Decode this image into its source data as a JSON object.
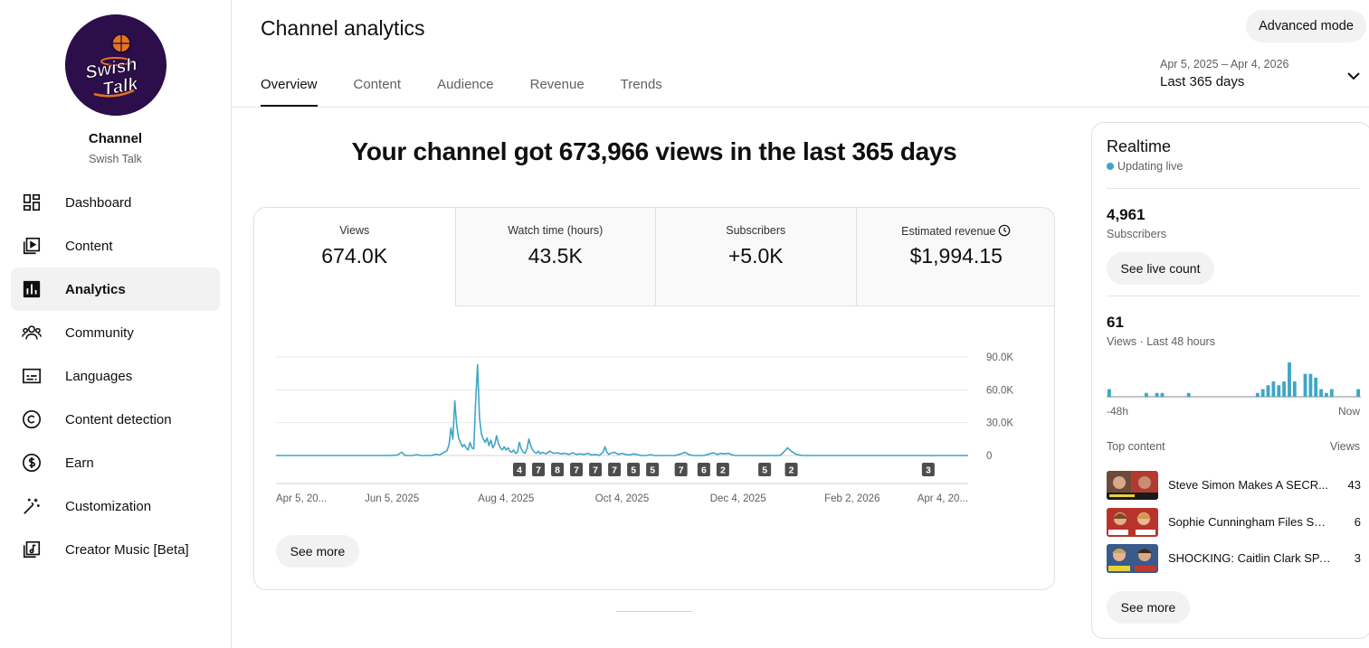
{
  "sidebar": {
    "logo": {
      "line1": "Swish",
      "line2": "Talk"
    },
    "channel_title": "Channel",
    "channel_name": "Swish Talk",
    "items": [
      {
        "label": "Dashboard",
        "icon": "dashboard-icon"
      },
      {
        "label": "Content",
        "icon": "content-icon"
      },
      {
        "label": "Analytics",
        "icon": "analytics-icon",
        "active": true
      },
      {
        "label": "Community",
        "icon": "community-icon"
      },
      {
        "label": "Languages",
        "icon": "languages-icon"
      },
      {
        "label": "Content detection",
        "icon": "content-detection-icon"
      },
      {
        "label": "Earn",
        "icon": "earn-icon"
      },
      {
        "label": "Customization",
        "icon": "customization-icon"
      },
      {
        "label": "Creator Music [Beta]",
        "icon": "creator-music-icon"
      }
    ]
  },
  "header": {
    "title": "Channel analytics",
    "advanced_mode": "Advanced mode",
    "tabs": [
      {
        "label": "Overview",
        "active": true
      },
      {
        "label": "Content"
      },
      {
        "label": "Audience"
      },
      {
        "label": "Revenue"
      },
      {
        "label": "Trends"
      }
    ],
    "date_range": "Apr 5, 2025 – Apr 4, 2026",
    "date_label": "Last 365 days"
  },
  "overview": {
    "headline": "Your channel got 673,966 views in the last 365 days",
    "metrics": [
      {
        "label": "Views",
        "value": "674.0K",
        "active": true
      },
      {
        "label": "Watch time (hours)",
        "value": "43.5K"
      },
      {
        "label": "Subscribers",
        "value": "+5.0K"
      },
      {
        "label": "Estimated revenue",
        "value": "$1,994.15",
        "has_clock_icon": true
      }
    ],
    "see_more": "See more"
  },
  "chart_data": {
    "type": "line",
    "title": "",
    "xlabel": "",
    "ylabel": "",
    "ylim": [
      0,
      90000
    ],
    "yticks": [
      0,
      30000,
      60000,
      90000
    ],
    "ytick_labels": [
      "0",
      "30.0K",
      "60.0K",
      "90.0K"
    ],
    "xtick_labels": [
      "Apr 5, 20...",
      "Jun 5, 2025",
      "Aug 4, 2025",
      "Oct 4, 2025",
      "Dec 4, 2025",
      "Feb 2, 2026",
      "Apr 4, 20..."
    ],
    "xtick_days": [
      0,
      61,
      121,
      182,
      243,
      303,
      364
    ],
    "legend": "none",
    "series": [
      {
        "color": "#3ea6c5",
        "points": [
          [
            0,
            0
          ],
          [
            60,
            0
          ],
          [
            64,
            500
          ],
          [
            66,
            3000
          ],
          [
            67,
            1500
          ],
          [
            68,
            0
          ],
          [
            72,
            0
          ],
          [
            74,
            800
          ],
          [
            76,
            0
          ],
          [
            82,
            0
          ],
          [
            84,
            1200
          ],
          [
            86,
            500
          ],
          [
            88,
            2500
          ],
          [
            90,
            4500
          ],
          [
            91,
            10000
          ],
          [
            92,
            25000
          ],
          [
            93,
            15000
          ],
          [
            94,
            50000
          ],
          [
            95,
            28000
          ],
          [
            96,
            16000
          ],
          [
            97,
            12000
          ],
          [
            98,
            8000
          ],
          [
            99,
            10000
          ],
          [
            100,
            7000
          ],
          [
            101,
            5000
          ],
          [
            102,
            12000
          ],
          [
            103,
            7000
          ],
          [
            104,
            6000
          ],
          [
            105,
            50000
          ],
          [
            106,
            83000
          ],
          [
            107,
            35000
          ],
          [
            108,
            20000
          ],
          [
            109,
            15000
          ],
          [
            110,
            12000
          ],
          [
            111,
            16000
          ],
          [
            112,
            9000
          ],
          [
            113,
            14000
          ],
          [
            114,
            7000
          ],
          [
            115,
            10000
          ],
          [
            116,
            18000
          ],
          [
            117,
            11000
          ],
          [
            118,
            7000
          ],
          [
            119,
            5000
          ],
          [
            120,
            8000
          ],
          [
            121,
            5000
          ],
          [
            122,
            7000
          ],
          [
            123,
            4000
          ],
          [
            124,
            3000
          ],
          [
            125,
            5000
          ],
          [
            126,
            2000
          ],
          [
            127,
            3000
          ],
          [
            128,
            12000
          ],
          [
            129,
            6000
          ],
          [
            130,
            3000
          ],
          [
            131,
            2000
          ],
          [
            132,
            6000
          ],
          [
            133,
            15000
          ],
          [
            134,
            9000
          ],
          [
            135,
            5000
          ],
          [
            136,
            3000
          ],
          [
            137,
            2000
          ],
          [
            138,
            4000
          ],
          [
            139,
            1500
          ],
          [
            140,
            3000
          ],
          [
            142,
            1500
          ],
          [
            144,
            4000
          ],
          [
            146,
            2000
          ],
          [
            148,
            2500
          ],
          [
            150,
            1500
          ],
          [
            152,
            2000
          ],
          [
            154,
            1000
          ],
          [
            156,
            2500
          ],
          [
            158,
            1000
          ],
          [
            160,
            1500
          ],
          [
            162,
            1000
          ],
          [
            164,
            2000
          ],
          [
            166,
            500
          ],
          [
            168,
            1000
          ],
          [
            170,
            0
          ],
          [
            172,
            3000
          ],
          [
            173,
            8000
          ],
          [
            174,
            3000
          ],
          [
            175,
            1000
          ],
          [
            176,
            2000
          ],
          [
            178,
            3000
          ],
          [
            180,
            1000
          ],
          [
            182,
            2000
          ],
          [
            184,
            1000
          ],
          [
            186,
            500
          ],
          [
            188,
            1500
          ],
          [
            190,
            800
          ],
          [
            192,
            0
          ],
          [
            195,
            0
          ],
          [
            197,
            800
          ],
          [
            199,
            0
          ],
          [
            210,
            0
          ],
          [
            213,
            1500
          ],
          [
            215,
            3000
          ],
          [
            217,
            1000
          ],
          [
            219,
            0
          ],
          [
            225,
            0
          ],
          [
            228,
            1500
          ],
          [
            230,
            2500
          ],
          [
            232,
            1000
          ],
          [
            234,
            2000
          ],
          [
            236,
            1500
          ],
          [
            238,
            2000
          ],
          [
            240,
            500
          ],
          [
            242,
            0
          ],
          [
            265,
            0
          ],
          [
            267,
            3000
          ],
          [
            269,
            7000
          ],
          [
            271,
            4000
          ],
          [
            273,
            1500
          ],
          [
            275,
            500
          ],
          [
            277,
            0
          ],
          [
            364,
            0
          ]
        ]
      }
    ],
    "markers": [
      {
        "day": 128,
        "label": "4"
      },
      {
        "day": 138,
        "label": "7"
      },
      {
        "day": 148,
        "label": "8"
      },
      {
        "day": 158,
        "label": "7"
      },
      {
        "day": 168,
        "label": "7"
      },
      {
        "day": 178,
        "label": "7"
      },
      {
        "day": 188,
        "label": "5"
      },
      {
        "day": 198,
        "label": "5"
      },
      {
        "day": 213,
        "label": "7"
      },
      {
        "day": 225,
        "label": "6"
      },
      {
        "day": 235,
        "label": "2"
      },
      {
        "day": 257,
        "label": "5"
      },
      {
        "day": 271,
        "label": "2"
      },
      {
        "day": 343,
        "label": "3"
      }
    ]
  },
  "realtime": {
    "title": "Realtime",
    "status": "Updating live",
    "subscribers_value": "4,961",
    "subscribers_label": "Subscribers",
    "see_live_count": "See live count",
    "views_value": "61",
    "views_label": "Views · Last 48 hours",
    "axis_start": "-48h",
    "axis_end": "Now",
    "hourly_views": [
      2,
      0,
      0,
      0,
      0,
      0,
      0,
      1,
      0,
      1,
      1,
      0,
      0,
      0,
      0,
      1,
      0,
      0,
      0,
      0,
      0,
      0,
      0,
      0,
      0,
      0,
      0,
      0,
      1,
      2,
      3,
      4,
      3,
      4,
      9,
      4,
      0,
      6,
      6,
      5,
      2,
      1,
      2,
      0,
      0,
      0,
      0,
      2
    ],
    "top_content_label": "Top content",
    "views_column_label": "Views",
    "top_content": [
      {
        "title": "Steve Simon Makes A SECR...",
        "views": "43"
      },
      {
        "title": "Sophie Cunningham Files SH...",
        "views": "6"
      },
      {
        "title": "SHOCKING: Caitlin Clark SPA...",
        "views": "3"
      }
    ],
    "see_more": "See more"
  },
  "colors": {
    "accent": "#3ea6c5",
    "active_bg": "#f2f2f2",
    "border": "#e0e0e0",
    "logo_bg": "#2b0e4a",
    "marker_bg": "#4d4d4d"
  }
}
